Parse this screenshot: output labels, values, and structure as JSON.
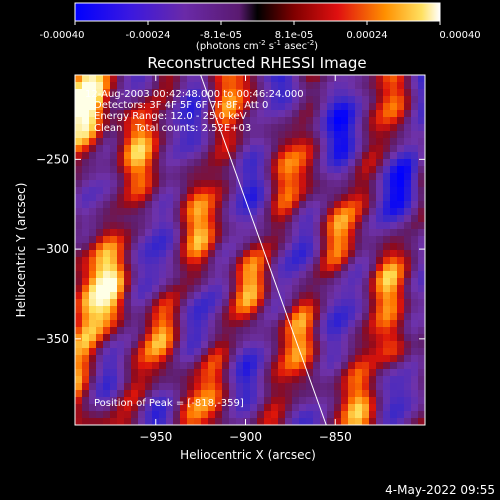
{
  "colorbar": {
    "ticks": [
      "-0.00040",
      "-0.00024",
      "-8.1e-05",
      "8.1e-05",
      "0.00024",
      "0.00040"
    ],
    "unit_label": "(photons cm",
    "unit_exp1": "-2",
    "unit_mid": " s",
    "unit_exp2": "-1",
    "unit_mid2": " asec",
    "unit_exp3": "-2",
    "unit_end": ")"
  },
  "chart_data": {
    "type": "heatmap",
    "title": "Reconstructed RHESSI Image",
    "xlabel": "Heliocentric X (arcsec)",
    "ylabel": "Heliocentric Y (arcsec)",
    "xlim": [
      -995,
      -800
    ],
    "ylim": [
      -398,
      -203
    ],
    "x_ticks": [
      -950,
      -900,
      -850
    ],
    "x_tick_labels": [
      "−950",
      "−900",
      "−850"
    ],
    "y_ticks": [
      -250,
      -300,
      -350
    ],
    "y_tick_labels": [
      "−250",
      "−300",
      "−350"
    ],
    "value_range": [
      -0.0004,
      0.0004
    ],
    "annotations": {
      "time_range": "12-Aug-2003 00:42:48.000 to 00:46:24.000",
      "detectors": "Detectors: 3F 4F 5F 6F 7F 8F, Att 0",
      "energy_range": "Energy Range: 12.0 - 25.0 keV",
      "clean": "Clean    Total counts: 2.52E+03",
      "peak": "Position of Peak = [-818,-359]"
    },
    "limb_line": [
      [
        -925,
        -203
      ],
      [
        -855,
        -398
      ]
    ],
    "grid": false
  },
  "footer": {
    "date": "4-May-2022 09:55"
  }
}
